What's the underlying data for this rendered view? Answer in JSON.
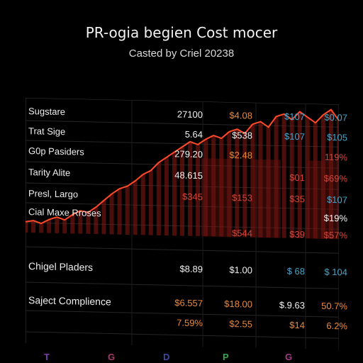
{
  "title": "PR-ogia begien Cost mocer",
  "subtitle": "Casted by Criel 20238",
  "table": {
    "rows": [
      {
        "label": "Sugstare",
        "cells": [
          {
            "text": "27100",
            "color": "#f0f0f0"
          },
          {
            "text": "$4.08",
            "color": "#e8883a"
          },
          {
            "text": "$107",
            "color": "#4aa3c8"
          },
          {
            "text": "$0.07",
            "color": "#4aa3c8"
          }
        ]
      },
      {
        "label": "Trat Sige",
        "cells": [
          {
            "text": "5.64",
            "color": "#f0f0f0"
          },
          {
            "text": "$538",
            "color": "#f0f0f0"
          },
          {
            "text": "$107",
            "color": "#4aa3c8"
          },
          {
            "text": "$105",
            "color": "#4aa3c8"
          }
        ]
      },
      {
        "label": "G0p Pasiders",
        "cells": [
          {
            "text": "279.20",
            "color": "#f0f0f0"
          },
          {
            "text": "$2.48",
            "color": "#e8883a"
          },
          {
            "text": "",
            "color": "#f0f0f0"
          },
          {
            "text": "119%",
            "color": "#d0463a"
          }
        ]
      },
      {
        "label": "Tarity Alite",
        "cells": [
          {
            "text": "48.615",
            "color": "#f0f0f0"
          },
          {
            "text": "",
            "color": "#f0f0f0"
          },
          {
            "text": "$01",
            "color": "#d0463a"
          },
          {
            "text": "$69%",
            "color": "#d0463a"
          }
        ]
      },
      {
        "label": "Presl, Largo",
        "cells": [
          {
            "text": "$345",
            "color": "#d0463a"
          },
          {
            "text": "$153",
            "color": "#d0463a"
          },
          {
            "text": "$35",
            "color": "#d0463a"
          },
          {
            "text": "$107",
            "color": "#4aa3c8"
          }
        ]
      },
      {
        "label": "Cial Maxe Rroses",
        "cells": [
          {
            "text": "",
            "color": "#f0f0f0"
          },
          {
            "text": "",
            "color": "#f0f0f0"
          },
          {
            "text": "",
            "color": "#f0f0f0"
          },
          {
            "text": "$19%",
            "color": "#f0f0f0"
          }
        ]
      },
      {
        "label": "",
        "cells": [
          {
            "text": "",
            "color": "#f0f0f0"
          },
          {
            "text": "$544",
            "color": "#d0463a"
          },
          {
            "text": "$39",
            "color": "#d0463a"
          },
          {
            "text": "$57%",
            "color": "#d0463a"
          }
        ]
      },
      {
        "label": "Chigel Pladers",
        "cells": [
          {
            "text": "$8.89",
            "color": "#f0f0f0"
          },
          {
            "text": "$1.00",
            "color": "#f0f0f0"
          },
          {
            "text": "$ 68",
            "color": "#4aa3c8"
          },
          {
            "text": "$ 104",
            "color": "#4aa3c8"
          }
        ]
      },
      {
        "label": "Saject Complience",
        "cells": [
          {
            "text": "$6.557",
            "color": "#e8883a"
          },
          {
            "text": "$18.00",
            "color": "#e8883a"
          },
          {
            "text": "$.9.63",
            "color": "#f0f0f0"
          },
          {
            "text": "50.7%",
            "color": "#e8883a"
          }
        ]
      },
      {
        "label": "",
        "cells": [
          {
            "text": "7.59%",
            "color": "#e8883a"
          },
          {
            "text": "$2.55",
            "color": "#e8883a"
          },
          {
            "text": "$14",
            "color": "#e8883a"
          },
          {
            "text": "6.2%",
            "color": "#e8883a"
          }
        ]
      }
    ]
  },
  "legend": [
    {
      "label": "T",
      "color": "#7a3aa8"
    },
    {
      "label": "G",
      "color": "#a83a6a"
    },
    {
      "label": "D",
      "color": "#3a4aa8"
    },
    {
      "label": "P",
      "color": "#3aa84a"
    },
    {
      "label": "G",
      "color": "#a83a8a"
    }
  ],
  "chart_data": {
    "type": "area",
    "title": "PR-ogia begien Cost mocer",
    "subtitle": "Casted by Criel 20238",
    "xlabel": "",
    "ylabel": "",
    "x": [
      0,
      1,
      2,
      3,
      4,
      5,
      6,
      7,
      8,
      9,
      10,
      11,
      12,
      13,
      14,
      15,
      16,
      17,
      18,
      19,
      20,
      21,
      22,
      23,
      24,
      25,
      26,
      27,
      28,
      29,
      30,
      31,
      32,
      33,
      34,
      35,
      36,
      37,
      38,
      39,
      40
    ],
    "series": [
      {
        "values": [
          8,
          9,
          7,
          10,
          12,
          10,
          14,
          17,
          16,
          20,
          25,
          30,
          34,
          36,
          40,
          45,
          48,
          54,
          58,
          62,
          66,
          70,
          68,
          72,
          75,
          73,
          78,
          80,
          77,
          84,
          86,
          82,
          90,
          92,
          88,
          94,
          90,
          86,
          92,
          96,
          88
        ]
      }
    ],
    "ylim": [
      0,
      100
    ],
    "line_color": "#ff4a2a",
    "fill_color": "#8a1a14",
    "grid": true
  }
}
